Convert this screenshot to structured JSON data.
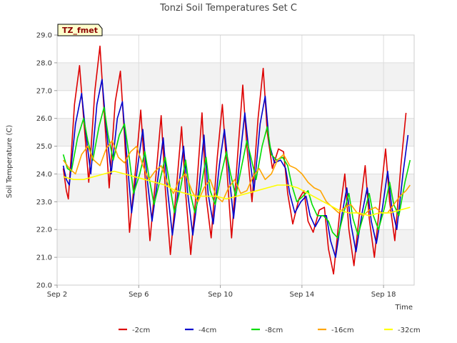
{
  "chart_data": {
    "type": "line",
    "title": "Tonzi Soil Temperatures Set C",
    "xlabel": "Time",
    "ylabel": "Soil Temperature (C)",
    "tag": "TZ_fmet",
    "xlim": [
      2.0,
      19.5
    ],
    "ylim": [
      20.0,
      29.0
    ],
    "x_ticks": [
      {
        "value": 2,
        "label": "Sep 2"
      },
      {
        "value": 6,
        "label": "Sep 6"
      },
      {
        "value": 10,
        "label": "Sep 10"
      },
      {
        "value": 14,
        "label": "Sep 14"
      },
      {
        "value": 18,
        "label": "Sep 18"
      }
    ],
    "y_ticks": [
      {
        "value": 20,
        "label": "20.0"
      },
      {
        "value": 21,
        "label": "21.0"
      },
      {
        "value": 22,
        "label": "22.0"
      },
      {
        "value": 23,
        "label": "23.0"
      },
      {
        "value": 24,
        "label": "24.0"
      },
      {
        "value": 25,
        "label": "25.0"
      },
      {
        "value": 26,
        "label": "26.0"
      },
      {
        "value": 27,
        "label": "27.0"
      },
      {
        "value": 28,
        "label": "28.0"
      },
      {
        "value": 29,
        "label": "29.0"
      }
    ],
    "grid": true,
    "legend_position": "bottom",
    "series": [
      {
        "name": "-2cm",
        "color": "#dd0000",
        "x": [
          2.3,
          2.45,
          2.55,
          2.85,
          3.1,
          3.3,
          3.55,
          3.85,
          4.1,
          4.3,
          4.55,
          4.85,
          5.1,
          5.3,
          5.55,
          5.85,
          6.1,
          6.3,
          6.55,
          6.85,
          7.1,
          7.3,
          7.55,
          7.85,
          8.1,
          8.3,
          8.55,
          8.85,
          9.1,
          9.3,
          9.55,
          9.85,
          10.1,
          10.3,
          10.55,
          10.85,
          11.1,
          11.3,
          11.55,
          11.85,
          12.1,
          12.3,
          12.55,
          12.85,
          13.1,
          13.3,
          13.55,
          13.85,
          14.1,
          14.3,
          14.55,
          14.85,
          15.1,
          15.3,
          15.55,
          15.85,
          16.1,
          16.3,
          16.55,
          16.85,
          17.1,
          17.3,
          17.55,
          17.85,
          18.1,
          18.3,
          18.55,
          18.85,
          19.1
        ],
        "y": [
          24.2,
          23.4,
          23.1,
          26.5,
          27.9,
          26.0,
          23.7,
          27.0,
          28.6,
          26.3,
          23.5,
          26.6,
          27.7,
          25.4,
          21.9,
          24.2,
          26.3,
          24.0,
          21.6,
          24.0,
          26.1,
          23.5,
          21.1,
          23.5,
          25.7,
          23.3,
          21.1,
          23.6,
          26.2,
          23.2,
          21.7,
          24.6,
          26.5,
          24.4,
          21.7,
          24.7,
          27.2,
          25.0,
          23.0,
          26.0,
          27.8,
          25.5,
          24.2,
          24.9,
          24.8,
          23.3,
          22.2,
          23.1,
          23.4,
          22.3,
          21.9,
          22.7,
          22.8,
          21.3,
          20.4,
          22.6,
          24.0,
          22.0,
          20.7,
          22.8,
          24.3,
          22.4,
          21.0,
          23.2,
          24.9,
          23.0,
          21.6,
          24.3,
          26.2
        ]
      },
      {
        "name": "-4cm",
        "color": "#0000cc",
        "x": [
          2.3,
          2.45,
          2.6,
          2.9,
          3.2,
          3.4,
          3.65,
          3.95,
          4.2,
          4.4,
          4.65,
          4.95,
          5.2,
          5.4,
          5.65,
          5.95,
          6.2,
          6.4,
          6.65,
          6.95,
          7.2,
          7.4,
          7.65,
          7.95,
          8.2,
          8.4,
          8.65,
          8.95,
          9.2,
          9.4,
          9.65,
          9.95,
          10.2,
          10.4,
          10.65,
          10.95,
          11.2,
          11.4,
          11.65,
          11.95,
          12.2,
          12.4,
          12.65,
          12.95,
          13.2,
          13.4,
          13.65,
          13.95,
          14.2,
          14.4,
          14.65,
          14.95,
          15.2,
          15.4,
          15.65,
          15.95,
          16.2,
          16.4,
          16.65,
          16.95,
          17.2,
          17.4,
          17.65,
          17.95,
          18.2,
          18.4,
          18.65,
          18.95,
          19.2
        ],
        "y": [
          24.3,
          23.8,
          23.6,
          25.8,
          26.9,
          25.5,
          24.0,
          26.5,
          27.4,
          25.7,
          24.0,
          26.0,
          26.6,
          24.8,
          22.6,
          24.3,
          25.6,
          23.9,
          22.3,
          23.9,
          25.3,
          23.5,
          21.8,
          23.5,
          25.0,
          23.3,
          21.8,
          23.5,
          25.4,
          23.3,
          22.2,
          24.3,
          25.6,
          24.2,
          22.4,
          24.5,
          26.2,
          24.8,
          23.4,
          25.8,
          26.8,
          25.1,
          24.4,
          24.5,
          24.2,
          23.3,
          22.6,
          23.0,
          23.2,
          22.5,
          22.1,
          22.5,
          22.5,
          21.6,
          21.0,
          22.5,
          23.5,
          22.2,
          21.2,
          22.6,
          23.5,
          22.3,
          21.5,
          22.8,
          24.1,
          22.8,
          22.0,
          24.0,
          25.4
        ]
      },
      {
        "name": "-8cm",
        "color": "#00dd00",
        "x": [
          2.3,
          2.5,
          2.7,
          3.0,
          3.3,
          3.5,
          3.75,
          4.05,
          4.3,
          4.5,
          4.75,
          5.05,
          5.3,
          5.5,
          5.75,
          6.05,
          6.3,
          6.5,
          6.75,
          7.05,
          7.3,
          7.5,
          7.75,
          8.05,
          8.3,
          8.5,
          8.75,
          9.05,
          9.3,
          9.5,
          9.75,
          10.05,
          10.3,
          10.5,
          10.75,
          11.05,
          11.3,
          11.5,
          11.75,
          12.05,
          12.3,
          12.5,
          12.75,
          13.05,
          13.3,
          13.5,
          13.75,
          14.05,
          14.3,
          14.5,
          14.75,
          15.05,
          15.3,
          15.5,
          15.75,
          16.05,
          16.3,
          16.5,
          16.75,
          17.05,
          17.3,
          17.5,
          17.75,
          18.05,
          18.3,
          18.5,
          18.75,
          19.05,
          19.3
        ],
        "y": [
          24.7,
          24.2,
          24.1,
          25.3,
          26.0,
          25.2,
          24.5,
          25.7,
          26.4,
          25.4,
          24.5,
          25.4,
          25.8,
          24.8,
          23.3,
          24.0,
          24.8,
          23.9,
          22.9,
          23.8,
          24.6,
          23.7,
          22.6,
          23.5,
          24.5,
          23.4,
          22.6,
          23.5,
          24.6,
          23.4,
          22.9,
          24.0,
          24.8,
          24.0,
          23.2,
          24.3,
          25.2,
          24.6,
          23.8,
          25.0,
          25.7,
          24.7,
          24.5,
          24.6,
          24.3,
          23.6,
          23.0,
          23.2,
          23.4,
          22.9,
          22.5,
          22.5,
          22.3,
          21.9,
          21.7,
          22.6,
          23.3,
          22.4,
          21.8,
          22.6,
          23.3,
          22.5,
          22.0,
          22.8,
          23.7,
          22.9,
          22.5,
          23.7,
          24.5
        ]
      },
      {
        "name": "-16cm",
        "color": "#ffa500",
        "x": [
          2.3,
          2.6,
          2.9,
          3.2,
          3.5,
          3.8,
          4.1,
          4.4,
          4.7,
          5.0,
          5.3,
          5.6,
          5.9,
          6.2,
          6.5,
          6.8,
          7.1,
          7.4,
          7.7,
          8.0,
          8.3,
          8.6,
          8.9,
          9.2,
          9.5,
          9.8,
          10.1,
          10.4,
          10.7,
          11.0,
          11.3,
          11.6,
          11.9,
          12.2,
          12.5,
          12.8,
          13.1,
          13.4,
          13.7,
          14.0,
          14.3,
          14.6,
          14.9,
          15.2,
          15.5,
          15.8,
          16.1,
          16.4,
          16.7,
          17.0,
          17.3,
          17.6,
          17.9,
          18.2,
          18.5,
          18.8,
          19.1,
          19.3
        ],
        "y": [
          24.5,
          24.2,
          24.0,
          24.7,
          25.0,
          24.5,
          24.3,
          24.9,
          25.2,
          24.6,
          24.4,
          24.8,
          25.0,
          24.3,
          23.8,
          24.1,
          24.3,
          23.7,
          23.3,
          23.8,
          24.0,
          23.4,
          23.0,
          23.5,
          23.8,
          23.2,
          23.0,
          23.5,
          23.8,
          23.3,
          23.4,
          23.9,
          24.2,
          23.8,
          24.0,
          24.5,
          24.7,
          24.3,
          24.2,
          24.0,
          23.7,
          23.5,
          23.4,
          23.0,
          22.8,
          22.6,
          22.8,
          22.9,
          22.6,
          22.5,
          22.7,
          22.8,
          22.6,
          22.6,
          22.9,
          23.2,
          23.4,
          23.6
        ]
      },
      {
        "name": "-32cm",
        "color": "#ffff00",
        "x": [
          2.3,
          2.8,
          3.3,
          3.8,
          4.3,
          4.8,
          5.3,
          5.8,
          6.3,
          6.8,
          7.3,
          7.8,
          8.3,
          8.8,
          9.3,
          9.8,
          10.3,
          10.8,
          11.3,
          11.8,
          12.3,
          12.8,
          13.3,
          13.8,
          14.3,
          14.8,
          15.3,
          15.8,
          16.3,
          16.8,
          17.3,
          17.8,
          18.3,
          18.8,
          19.3
        ],
        "y": [
          23.9,
          23.8,
          23.8,
          23.9,
          24.0,
          24.1,
          24.0,
          23.9,
          23.8,
          23.7,
          23.6,
          23.4,
          23.3,
          23.2,
          23.2,
          23.2,
          23.1,
          23.2,
          23.3,
          23.4,
          23.5,
          23.6,
          23.6,
          23.5,
          23.3,
          23.1,
          22.9,
          22.7,
          22.6,
          22.6,
          22.5,
          22.6,
          22.6,
          22.7,
          22.8
        ]
      }
    ]
  }
}
